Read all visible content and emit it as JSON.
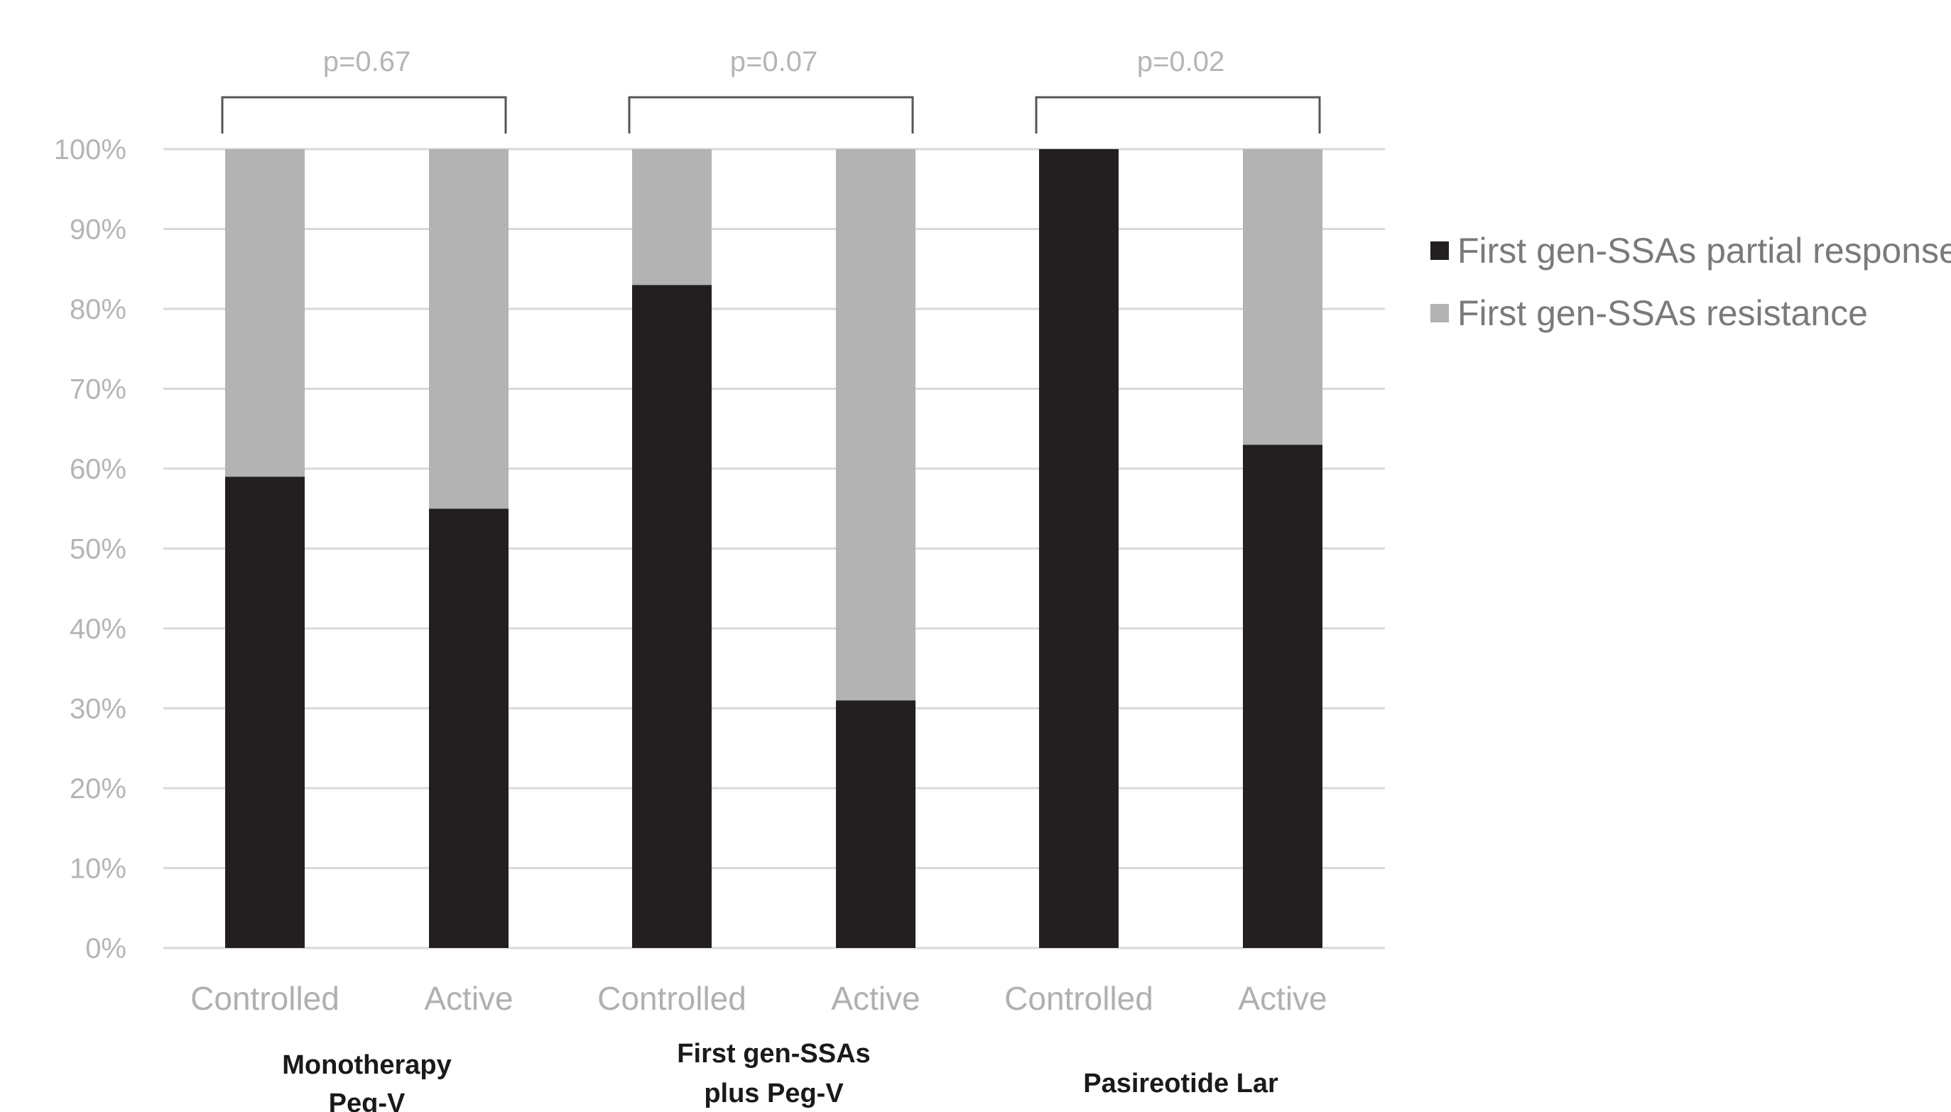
{
  "chart_data": {
    "type": "bar",
    "stacked": true,
    "ylim": [
      0,
      100
    ],
    "y_ticks": [
      "0%",
      "10%",
      "20%",
      "30%",
      "40%",
      "50%",
      "60%",
      "70%",
      "80%",
      "90%",
      "100%"
    ],
    "categories": [
      "Controlled",
      "Active",
      "Controlled",
      "Active",
      "Controlled",
      "Active"
    ],
    "groups": [
      {
        "label_lines": [
          "Monotherapy",
          "Peg-V"
        ],
        "p_value": "p=0.67"
      },
      {
        "label_lines": [
          "First gen-SSAs",
          "plus Peg-V"
        ],
        "p_value": "p=0.07"
      },
      {
        "label_lines": [
          "Pasireotide Lar"
        ],
        "p_value": "p=0.02"
      }
    ],
    "series": [
      {
        "name": "First gen-SSAs partial response",
        "color": "#231f20",
        "values": [
          59,
          55,
          83,
          31,
          100,
          63
        ]
      },
      {
        "name": "First gen-SSAs resistance",
        "color": "#b3b3b3",
        "values": [
          41,
          45,
          17,
          69,
          0,
          37
        ]
      }
    ],
    "grid": true,
    "legend_position": "right"
  }
}
